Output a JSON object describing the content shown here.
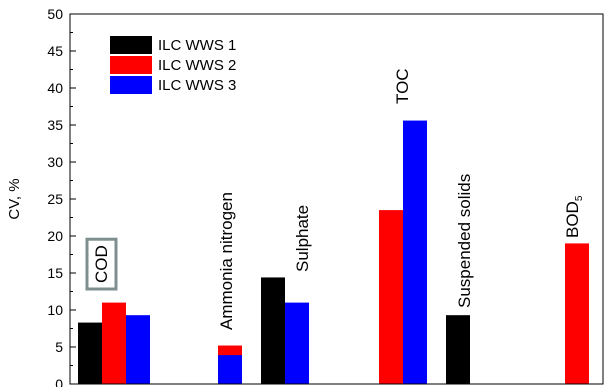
{
  "chart_data": {
    "type": "bar",
    "ylabel": "CV, %",
    "ylim": [
      0,
      50
    ],
    "yticks": [
      0,
      5,
      10,
      15,
      20,
      25,
      30,
      35,
      40,
      45,
      50
    ],
    "grid": false,
    "legend_position": "top-left",
    "categories": [
      "COD",
      "Ammonia nitrogen",
      "Sulphate",
      "TOC",
      "Suspended solids",
      "BOD5"
    ],
    "series": [
      {
        "name": "ILC WWS 1",
        "color": "#000000",
        "values": [
          8.3,
          null,
          14.4,
          null,
          9.3,
          null
        ]
      },
      {
        "name": "ILC WWS 2",
        "color": "#ff0000",
        "values": [
          11.0,
          5.2,
          null,
          23.5,
          null,
          19.0
        ]
      },
      {
        "name": "ILC WWS 3",
        "color": "#0000ff",
        "values": [
          9.3,
          3.9,
          11.0,
          35.6,
          null,
          null
        ]
      }
    ],
    "category_labels": [
      {
        "base": "COD",
        "sub": "",
        "boxed": true
      },
      {
        "base": "Ammonia nitrogen",
        "sub": "",
        "boxed": false
      },
      {
        "base": "Sulphate",
        "sub": "",
        "boxed": false
      },
      {
        "base": "TOC",
        "sub": "",
        "boxed": false
      },
      {
        "base": "Suspended solids",
        "sub": "",
        "boxed": false
      },
      {
        "base": "BOD",
        "sub": "5",
        "boxed": false
      }
    ]
  }
}
